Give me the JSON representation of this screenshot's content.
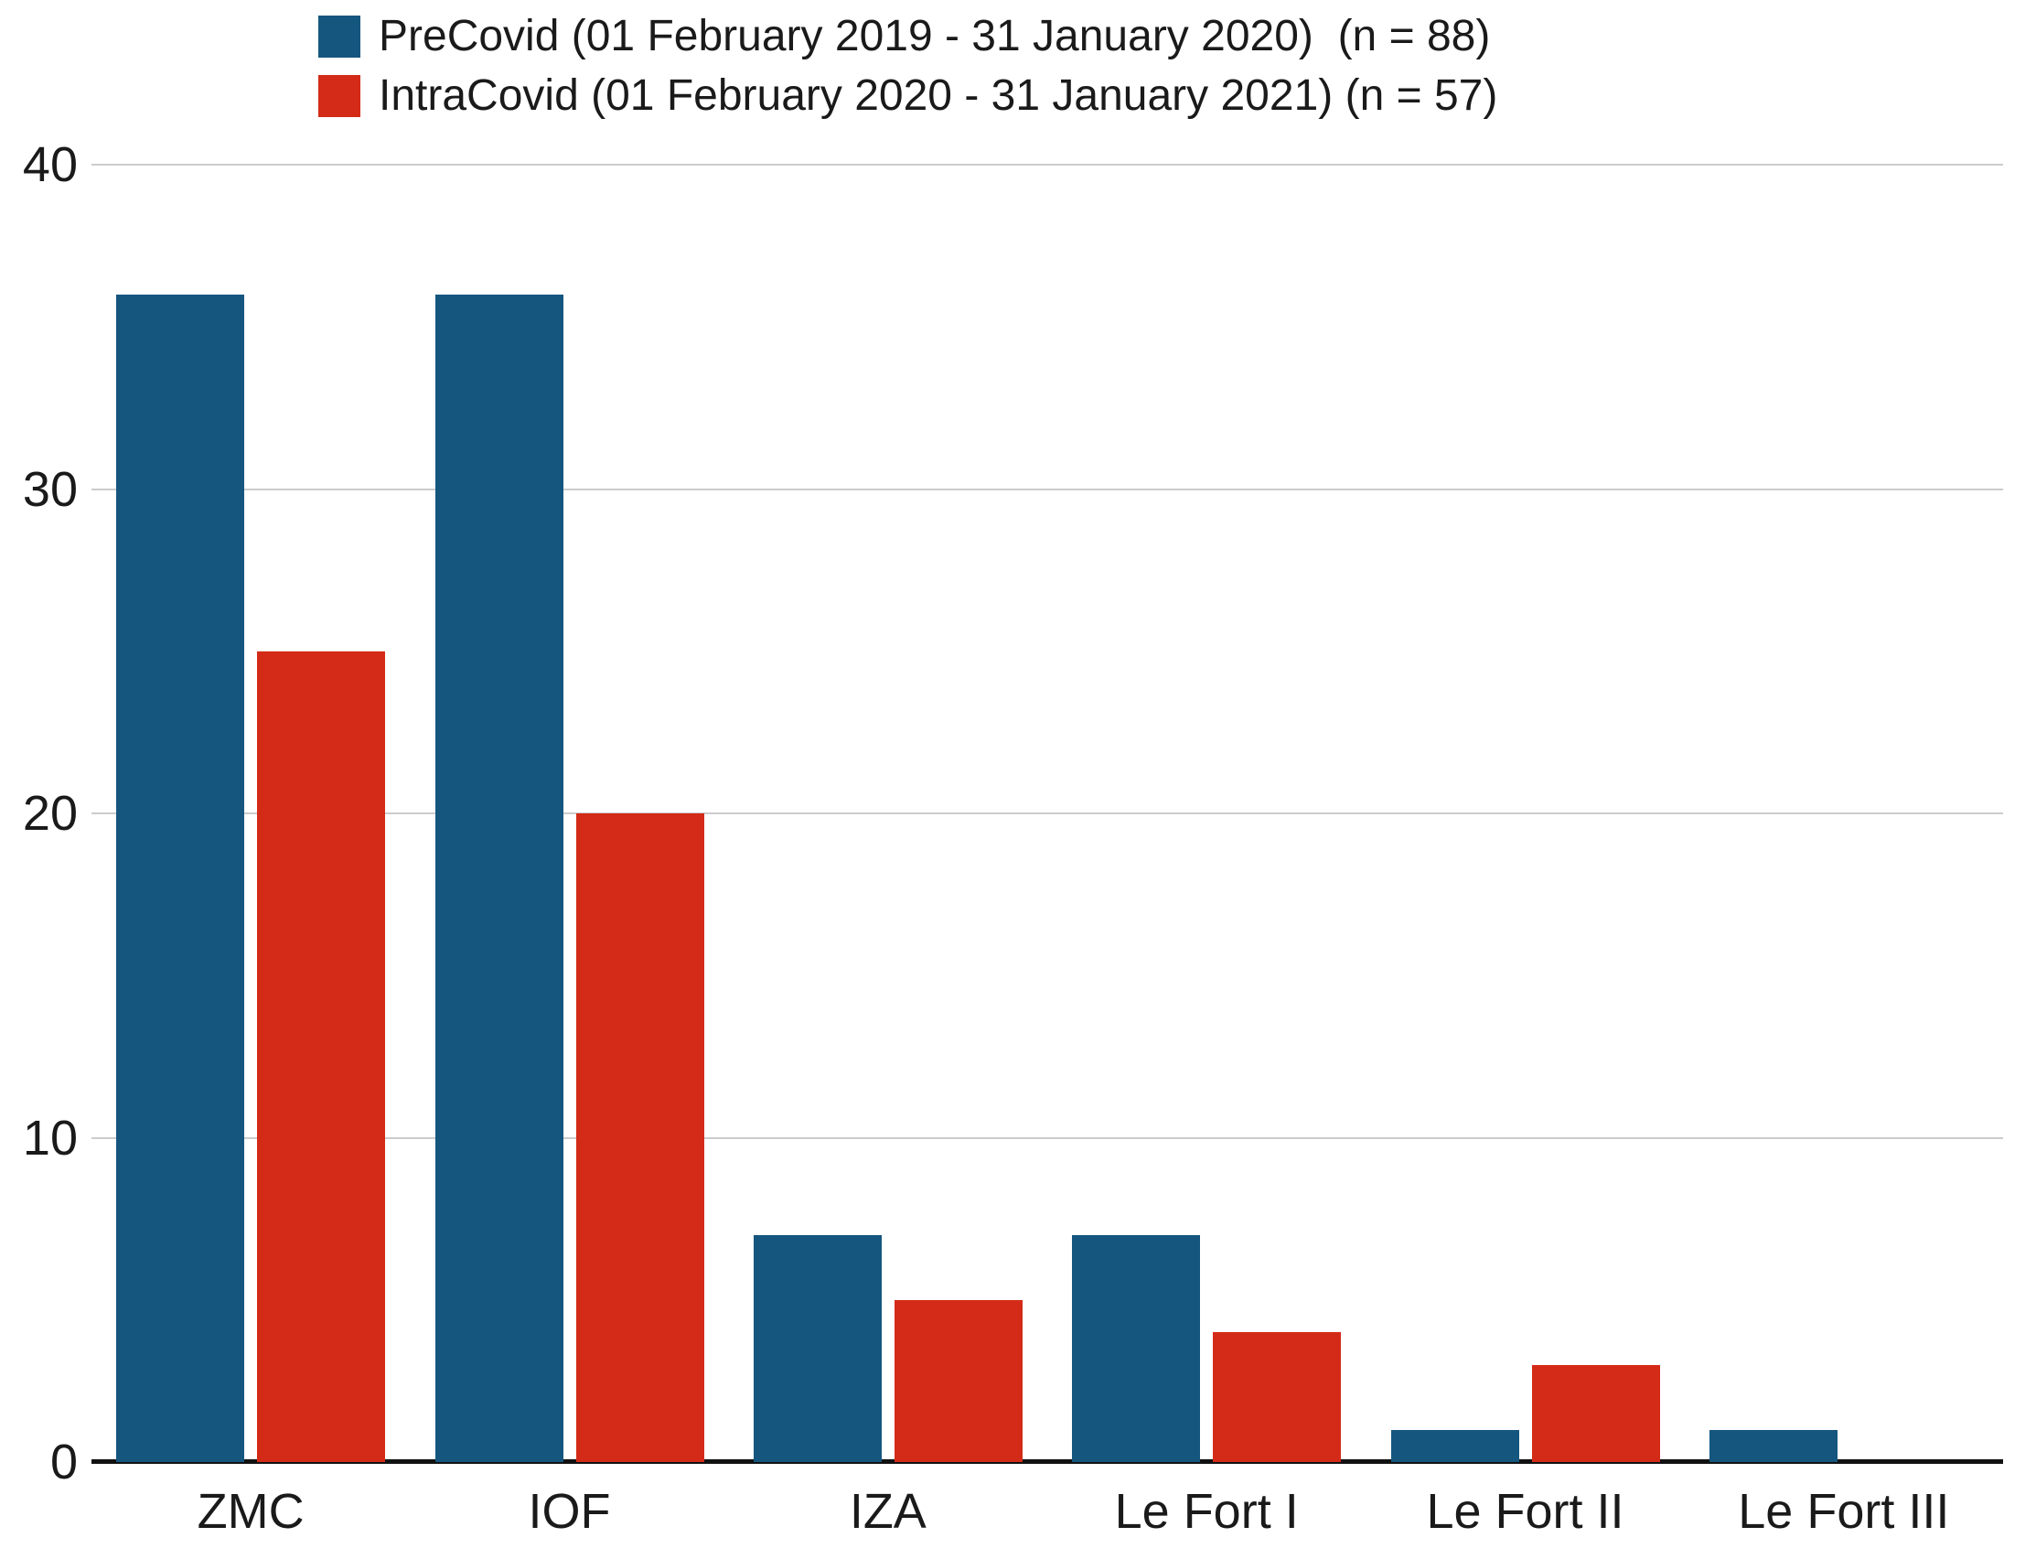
{
  "chart_data": {
    "type": "bar",
    "title": "",
    "xlabel": "",
    "ylabel": "",
    "categories": [
      "ZMC",
      "IOF",
      "IZA",
      "Le Fort I",
      "Le Fort II",
      "Le Fort III"
    ],
    "series": [
      {
        "name": "PreCovid (01 February 2019 - 31 January 2020)  (n = 88)",
        "color": "#15567F",
        "values": [
          36,
          36,
          7,
          7,
          1,
          1
        ]
      },
      {
        "name": "IntraCovid (01 February 2020 - 31 January 2021) (n = 57)",
        "color": "#D42B18",
        "values": [
          25,
          20,
          5,
          4,
          3,
          0
        ]
      }
    ],
    "ylim": [
      0,
      40
    ],
    "yticks": [
      0,
      10,
      20,
      30,
      40
    ],
    "grid": "horizontal",
    "legend_position": "top-left",
    "axis_color": "#111111",
    "gridline_color": "#cccccc"
  }
}
